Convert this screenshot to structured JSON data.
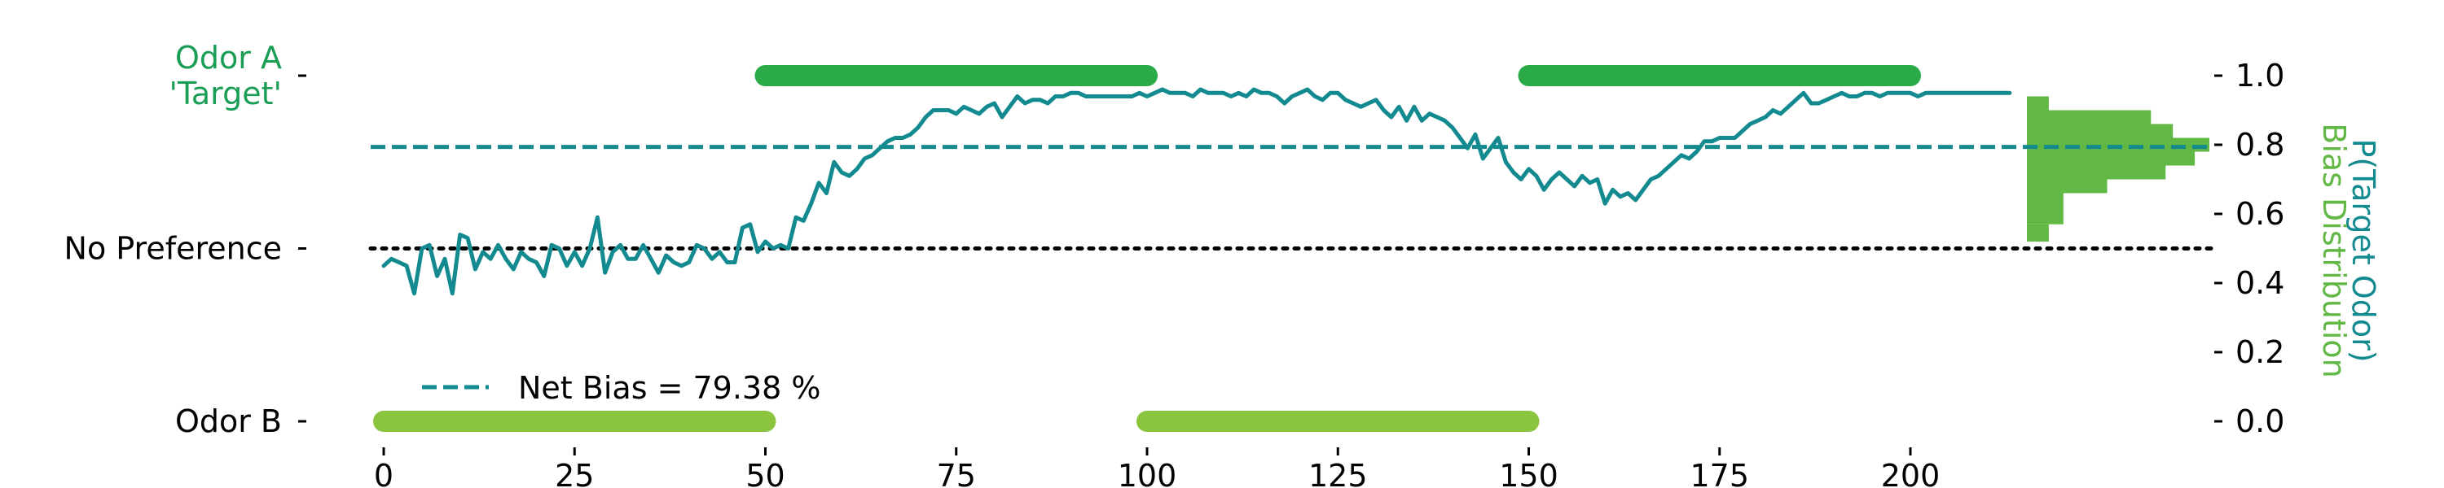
{
  "chart_data": {
    "type": "line",
    "colors": {
      "odor_a": "#2aab47",
      "odor_b": "#8bc540",
      "line": "#128a8f",
      "odor_a_label": "#1a9e55",
      "hist": "#62b844",
      "text": "#000000"
    },
    "left_axis": {
      "labels": [
        {
          "text": "Odor A\n'Target'",
          "y": 1.0,
          "color_key": "odor_a_label"
        },
        {
          "text": "No Preference",
          "y": 0.5,
          "color_key": "text"
        },
        {
          "text": "Odor B",
          "y": 0.0,
          "color_key": "text"
        }
      ]
    },
    "right_axis": {
      "ylim": [
        0.0,
        1.0
      ],
      "ticks": [
        {
          "value": 0.0,
          "label": "0.0"
        },
        {
          "value": 0.2,
          "label": "0.2"
        },
        {
          "value": 0.4,
          "label": "0.4"
        },
        {
          "value": 0.6,
          "label": "0.6"
        },
        {
          "value": 0.8,
          "label": "0.8"
        },
        {
          "value": 1.0,
          "label": "1.0"
        }
      ],
      "title_lines": [
        "P(Target Odor)",
        "Bias Distribution"
      ]
    },
    "x_axis": {
      "xlim": [
        -3,
        205
      ],
      "ticks": [
        {
          "value": 0,
          "label": "0"
        },
        {
          "value": 25,
          "label": "25"
        },
        {
          "value": 50,
          "label": "50"
        },
        {
          "value": 75,
          "label": "75"
        },
        {
          "value": 100,
          "label": "100"
        },
        {
          "value": 125,
          "label": "125"
        },
        {
          "value": 150,
          "label": "150"
        },
        {
          "value": 175,
          "label": "175"
        },
        {
          "value": 200,
          "label": "200"
        }
      ]
    },
    "y_range": [
      -0.05,
      1.06
    ],
    "odor_blocks": [
      {
        "odor": "A",
        "start": 50,
        "end": 100,
        "y": 1.0
      },
      {
        "odor": "B",
        "start": 0,
        "end": 50,
        "y": 0.0
      },
      {
        "odor": "B",
        "start": 100,
        "end": 150,
        "y": 0.0
      },
      {
        "odor": "A",
        "start": 150,
        "end": 200,
        "y": 1.0
      }
    ],
    "reference_lines": [
      {
        "name": "net-bias",
        "y": 0.7938,
        "style": "dashed"
      },
      {
        "name": "no-preference",
        "y": 0.5,
        "style": "dotted"
      }
    ],
    "legend": {
      "label": "Net Bias = 79.38 %",
      "position": "lower-left"
    },
    "series": [
      {
        "x_start": 0,
        "x_step": 1,
        "values": [
          0.45,
          0.47,
          0.46,
          0.45,
          0.37,
          0.5,
          0.51,
          0.42,
          0.47,
          0.37,
          0.54,
          0.53,
          0.44,
          0.49,
          0.47,
          0.51,
          0.47,
          0.44,
          0.49,
          0.47,
          0.46,
          0.42,
          0.51,
          0.5,
          0.45,
          0.49,
          0.45,
          0.5,
          0.59,
          0.43,
          0.49,
          0.51,
          0.47,
          0.47,
          0.51,
          0.47,
          0.43,
          0.48,
          0.46,
          0.45,
          0.46,
          0.51,
          0.5,
          0.47,
          0.49,
          0.46,
          0.46,
          0.56,
          0.57,
          0.49,
          0.52,
          0.5,
          0.51,
          0.5,
          0.59,
          0.58,
          0.63,
          0.69,
          0.66,
          0.75,
          0.72,
          0.71,
          0.73,
          0.76,
          0.77,
          0.79,
          0.81,
          0.82,
          0.82,
          0.83,
          0.85,
          0.88,
          0.9,
          0.9,
          0.9,
          0.89,
          0.91,
          0.9,
          0.89,
          0.91,
          0.92,
          0.88,
          0.91,
          0.94,
          0.92,
          0.93,
          0.93,
          0.92,
          0.94,
          0.94,
          0.95,
          0.95,
          0.94,
          0.94,
          0.94,
          0.94,
          0.94,
          0.94,
          0.94,
          0.95,
          0.94,
          0.95,
          0.96,
          0.95,
          0.95,
          0.95,
          0.94,
          0.96,
          0.95,
          0.95,
          0.95,
          0.94,
          0.95,
          0.94,
          0.96,
          0.95,
          0.95,
          0.94,
          0.92,
          0.94,
          0.95,
          0.96,
          0.94,
          0.93,
          0.95,
          0.95,
          0.93,
          0.92,
          0.91,
          0.92,
          0.93,
          0.9,
          0.88,
          0.91,
          0.87,
          0.91,
          0.87,
          0.89,
          0.88,
          0.87,
          0.85,
          0.82,
          0.79,
          0.83,
          0.76,
          0.79,
          0.82,
          0.75,
          0.72,
          0.7,
          0.73,
          0.71,
          0.67,
          0.7,
          0.72,
          0.7,
          0.68,
          0.71,
          0.69,
          0.7,
          0.63,
          0.67,
          0.65,
          0.66,
          0.64,
          0.67,
          0.7,
          0.71,
          0.73,
          0.75,
          0.77,
          0.76,
          0.78,
          0.81,
          0.81,
          0.82,
          0.82,
          0.82,
          0.84,
          0.86,
          0.87,
          0.88,
          0.9,
          0.89,
          0.91,
          0.93,
          0.95,
          0.92,
          0.92,
          0.93,
          0.94,
          0.95,
          0.94,
          0.94,
          0.95,
          0.95,
          0.94,
          0.95,
          0.95,
          0.95,
          0.95,
          0.94,
          0.95,
          0.95,
          0.95,
          0.95,
          0.95,
          0.95,
          0.95,
          0.95,
          0.95,
          0.95,
          0.95,
          0.95
        ]
      }
    ],
    "histogram": {
      "orientation": "horizontal",
      "bins": [
        {
          "y0": 0.52,
          "y1": 0.57,
          "count": 3
        },
        {
          "y0": 0.57,
          "y1": 0.66,
          "count": 5
        },
        {
          "y0": 0.66,
          "y1": 0.7,
          "count": 11
        },
        {
          "y0": 0.7,
          "y1": 0.74,
          "count": 19
        },
        {
          "y0": 0.74,
          "y1": 0.78,
          "count": 23
        },
        {
          "y0": 0.78,
          "y1": 0.82,
          "count": 25
        },
        {
          "y0": 0.82,
          "y1": 0.86,
          "count": 20
        },
        {
          "y0": 0.86,
          "y1": 0.9,
          "count": 17
        },
        {
          "y0": 0.9,
          "y1": 0.94,
          "count": 3
        }
      ],
      "max_count": 25
    }
  }
}
